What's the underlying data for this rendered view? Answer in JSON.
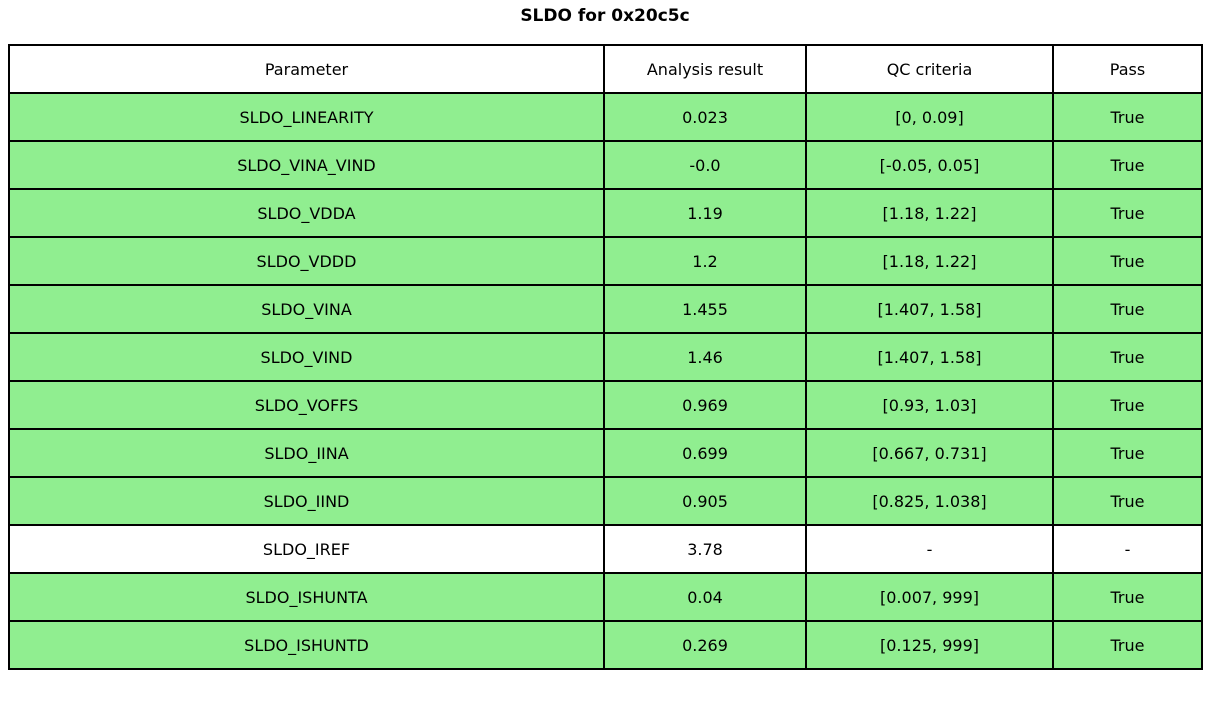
{
  "title": "SLDO for 0x20c5c",
  "colors": {
    "pass_row_green": "#90EE90",
    "plain_row_white": "#ffffff",
    "border_black": "#000000"
  },
  "chart_data": {
    "type": "table",
    "title": "SLDO for 0x20c5c",
    "headers": [
      "Parameter",
      "Analysis result",
      "QC criteria",
      "Pass"
    ],
    "rows": [
      {
        "cells": [
          "SLDO_LINEARITY",
          "0.023",
          "[0, 0.09]",
          "True"
        ],
        "highlight": true
      },
      {
        "cells": [
          "SLDO_VINA_VIND",
          "-0.0",
          "[-0.05, 0.05]",
          "True"
        ],
        "highlight": true
      },
      {
        "cells": [
          "SLDO_VDDA",
          "1.19",
          "[1.18, 1.22]",
          "True"
        ],
        "highlight": true
      },
      {
        "cells": [
          "SLDO_VDDD",
          "1.2",
          "[1.18, 1.22]",
          "True"
        ],
        "highlight": true
      },
      {
        "cells": [
          "SLDO_VINA",
          "1.455",
          "[1.407, 1.58]",
          "True"
        ],
        "highlight": true
      },
      {
        "cells": [
          "SLDO_VIND",
          "1.46",
          "[1.407, 1.58]",
          "True"
        ],
        "highlight": true
      },
      {
        "cells": [
          "SLDO_VOFFS",
          "0.969",
          "[0.93, 1.03]",
          "True"
        ],
        "highlight": true
      },
      {
        "cells": [
          "SLDO_IINA",
          "0.699",
          "[0.667, 0.731]",
          "True"
        ],
        "highlight": true
      },
      {
        "cells": [
          "SLDO_IIND",
          "0.905",
          "[0.825, 1.038]",
          "True"
        ],
        "highlight": true
      },
      {
        "cells": [
          "SLDO_IREF",
          "3.78",
          "-",
          "-"
        ],
        "highlight": false
      },
      {
        "cells": [
          "SLDO_ISHUNTA",
          "0.04",
          "[0.007, 999]",
          "True"
        ],
        "highlight": true
      },
      {
        "cells": [
          "SLDO_ISHUNTD",
          "0.269",
          "[0.125, 999]",
          "True"
        ],
        "highlight": true
      }
    ]
  }
}
